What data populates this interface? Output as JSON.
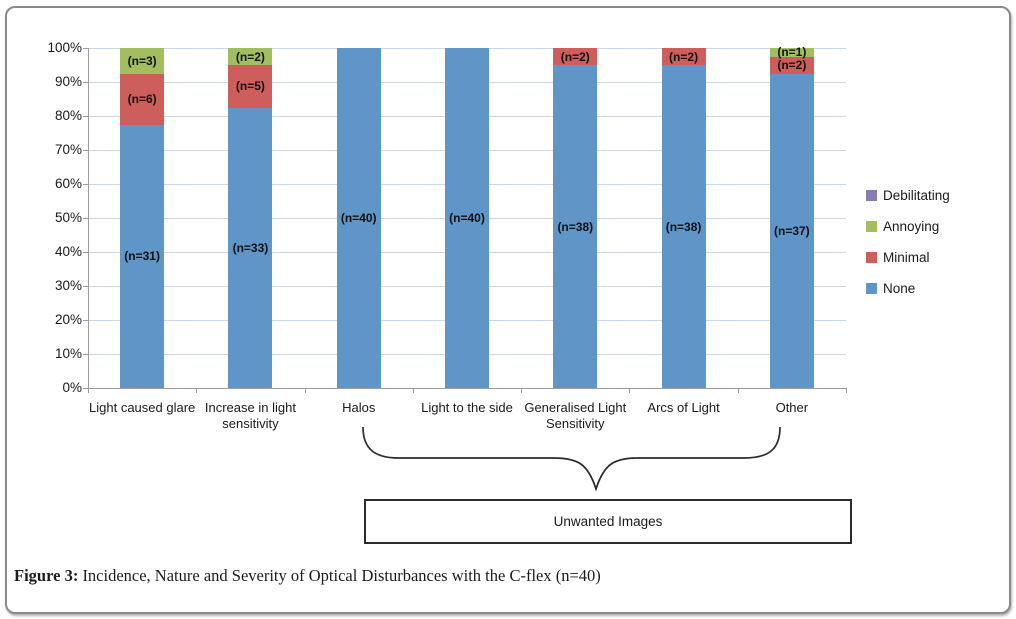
{
  "figure": {
    "caption_label": "Figure 3:",
    "caption_rest": " Incidence, Nature and Severity of Optical Disturbances with the C-flex (n=40)"
  },
  "annotation": {
    "box_label": "Unwanted Images"
  },
  "chart_data": {
    "type": "bar",
    "subtype": "100%-stacked-column",
    "title": "",
    "xlabel": "",
    "ylabel": "",
    "ylim": [
      0,
      100
    ],
    "grid": true,
    "legend_position": "right",
    "total_n": 40,
    "categories": [
      "Light caused glare",
      "Increase in light sensitivity",
      "Halos",
      "Light to the side",
      "Generalised Light Sensitivity",
      "Arcs of Light",
      "Other"
    ],
    "y_ticks": [
      "0%",
      "10%",
      "20%",
      "30%",
      "40%",
      "50%",
      "60%",
      "70%",
      "80%",
      "90%",
      "100%"
    ],
    "series": [
      {
        "name": "None",
        "color": "#6095c8",
        "values": [
          31,
          33,
          40,
          40,
          38,
          38,
          37
        ],
        "labels": [
          "(n=31)",
          "(n=33)",
          "(n=40)",
          "(n=40)",
          "(n=38)",
          "(n=38)",
          "(n=37)"
        ]
      },
      {
        "name": "Minimal",
        "color": "#ce5e5b",
        "values": [
          6,
          5,
          0,
          0,
          2,
          2,
          2
        ],
        "labels": [
          "(n=6)",
          "(n=5)",
          null,
          null,
          "(n=2)",
          "(n=2)",
          "(n=2)"
        ]
      },
      {
        "name": "Annoying",
        "color": "#a3be5f",
        "values": [
          3,
          2,
          0,
          0,
          0,
          0,
          1
        ],
        "labels": [
          "(n=3)",
          "(n=2)",
          null,
          null,
          null,
          null,
          "(n=1)"
        ]
      },
      {
        "name": "Debilitating",
        "color": "#8a7ab5",
        "values": [
          0,
          0,
          0,
          0,
          0,
          0,
          0
        ],
        "labels": [
          null,
          null,
          null,
          null,
          null,
          null,
          null
        ]
      }
    ],
    "legend": [
      {
        "label": "Debilitating",
        "color": "#8a7ab5"
      },
      {
        "label": "Annoying",
        "color": "#a3be5f"
      },
      {
        "label": "Minimal",
        "color": "#ce5e5b"
      },
      {
        "label": "None",
        "color": "#6095c8"
      }
    ],
    "annotation_brace": {
      "covers": [
        "Halos",
        "Light to the side",
        "Generalised Light Sensitivity",
        "Arcs of Light",
        "Other"
      ],
      "label": "Unwanted Images"
    }
  }
}
